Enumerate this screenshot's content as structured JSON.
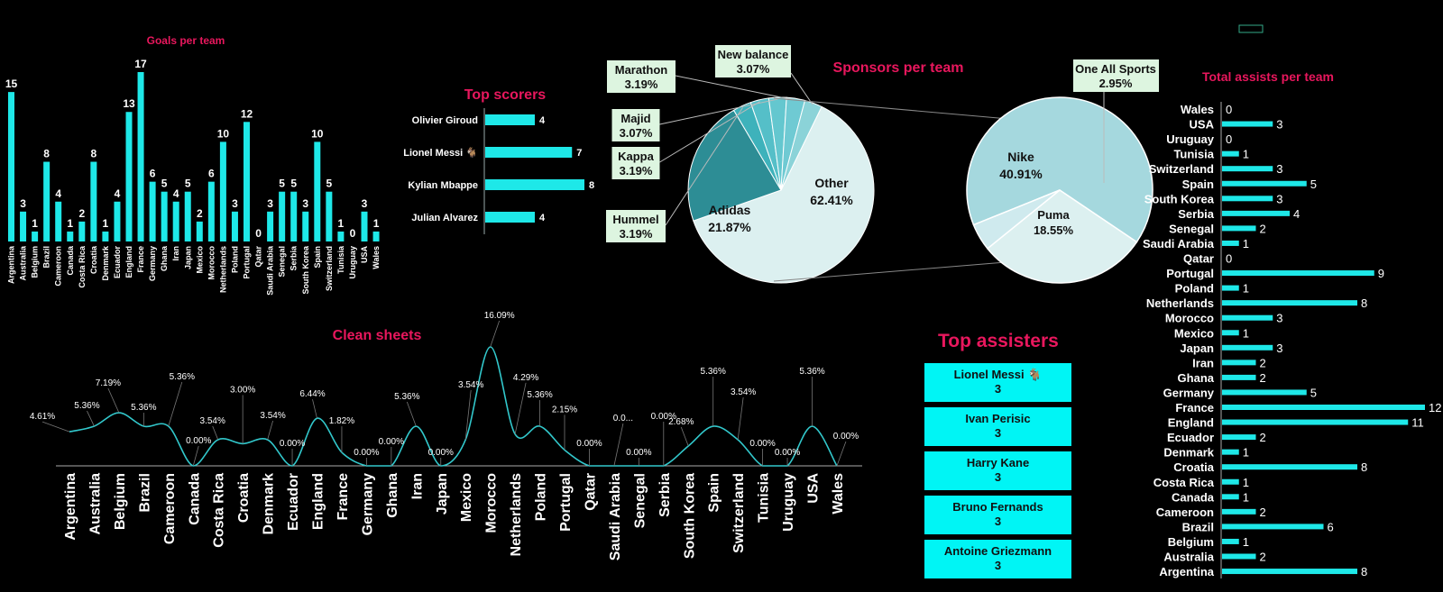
{
  "colors": {
    "accent": "#e8175d",
    "bar": "#1ee8e8",
    "bg": "#000000",
    "label": "#ffffff"
  },
  "chart_data": [
    {
      "type": "bar",
      "title": "Goals per team",
      "categories": [
        "Argentina",
        "Australia",
        "Belgium",
        "Brazil",
        "Cameroon",
        "Canada",
        "Costa Rica",
        "Croatia",
        "Denmark",
        "Ecuador",
        "England",
        "France",
        "Germany",
        "Ghana",
        "Iran",
        "Japan",
        "Mexico",
        "Morocco",
        "Netherlands",
        "Poland",
        "Portugal",
        "Qatar",
        "Saudi Arabia",
        "Senegal",
        "Serbia",
        "South Korea",
        "Spain",
        "Switzerland",
        "Tunisia",
        "Uruguay",
        "USA",
        "Wales"
      ],
      "values": [
        15,
        3,
        1,
        8,
        4,
        1,
        2,
        8,
        1,
        4,
        13,
        17,
        6,
        5,
        4,
        5,
        2,
        6,
        10,
        3,
        12,
        0,
        3,
        5,
        5,
        3,
        10,
        5,
        1,
        0,
        3,
        1
      ],
      "ylim": [
        0,
        17
      ]
    },
    {
      "type": "bar",
      "orientation": "horizontal",
      "title": "Top scorers",
      "categories": [
        "Olivier Giroud",
        "Lionel Messi 🐐",
        "Kylian Mbappe",
        "Julian Alvarez"
      ],
      "values": [
        4,
        7,
        8,
        4
      ]
    },
    {
      "type": "pie",
      "title": "Sponsors per team",
      "slices": [
        {
          "label": "Other",
          "value": 62.41,
          "text": "62.41%"
        },
        {
          "label": "Adidas",
          "value": 21.87,
          "text": "21.87%"
        },
        {
          "label": "Hummel",
          "value": 3.19,
          "text": "3.19%"
        },
        {
          "label": "Kappa",
          "value": 3.19,
          "text": "3.19%"
        },
        {
          "label": "Majid",
          "value": 3.07,
          "text": "3.07%"
        },
        {
          "label": "Marathon",
          "value": 3.19,
          "text": "3.19%"
        },
        {
          "label": "New balance",
          "value": 3.07,
          "text": "3.07%"
        }
      ],
      "breakout": [
        {
          "label": "Nike",
          "value": 40.91,
          "text": "40.91%"
        },
        {
          "label": "Puma",
          "value": 18.55,
          "text": "18.55%"
        },
        {
          "label": "One All Sports",
          "value": 2.95,
          "text": "2.95%"
        }
      ]
    },
    {
      "type": "line",
      "title": "Clean sheets",
      "categories": [
        "Argentina",
        "Australia",
        "Belgium",
        "Brazil",
        "Cameroon",
        "Canada",
        "Costa Rica",
        "Croatia",
        "Denmark",
        "Ecuador",
        "England",
        "France",
        "Germany",
        "Ghana",
        "Iran",
        "Japan",
        "Mexico",
        "Morocco",
        "Netherlands",
        "Poland",
        "Portugal",
        "Qatar",
        "Saudi Arabia",
        "Senegal",
        "Serbia",
        "South Korea",
        "Spain",
        "Switzerland",
        "Tunisia",
        "Uruguay",
        "USA",
        "Wales"
      ],
      "values": [
        4.61,
        5.36,
        7.19,
        5.36,
        5.36,
        0.0,
        3.54,
        3.0,
        3.54,
        0.0,
        6.44,
        1.82,
        0.0,
        0.0,
        5.36,
        0.0,
        3.54,
        16.09,
        4.29,
        5.36,
        2.15,
        0.0,
        0.0,
        0.0,
        0.0,
        2.68,
        5.36,
        3.54,
        0.0,
        0.0,
        5.36,
        0.0
      ],
      "labels": [
        "4.61%",
        "5.36%",
        "7.19%",
        "5.36%",
        "5.36%",
        "0.00%",
        "3.54%",
        "3.00%",
        "3.54%",
        "0.00%",
        "6.44%",
        "1.82%",
        "0.00%",
        "0.00%",
        "5.36%",
        "0.00%",
        "3.54%",
        "16.09%",
        "4.29%",
        "5.36%",
        "2.15%",
        "0.00%",
        "0.0...",
        "0.00%",
        "0.00%",
        "2.68%",
        "5.36%",
        "3.54%",
        "0.00%",
        "0.00%",
        "5.36%",
        "0.00%"
      ]
    },
    {
      "type": "bar",
      "orientation": "horizontal",
      "title": "Total assists per team",
      "categories": [
        "Wales",
        "USA",
        "Uruguay",
        "Tunisia",
        "Switzerland",
        "Spain",
        "South Korea",
        "Serbia",
        "Senegal",
        "Saudi Arabia",
        "Qatar",
        "Portugal",
        "Poland",
        "Netherlands",
        "Morocco",
        "Mexico",
        "Japan",
        "Iran",
        "Ghana",
        "Germany",
        "France",
        "England",
        "Ecuador",
        "Denmark",
        "Croatia",
        "Costa Rica",
        "Canada",
        "Cameroon",
        "Brazil",
        "Belgium",
        "Australia",
        "Argentina"
      ],
      "values": [
        0,
        3,
        0,
        1,
        3,
        5,
        3,
        4,
        2,
        1,
        0,
        9,
        1,
        8,
        3,
        1,
        3,
        2,
        2,
        5,
        12,
        11,
        2,
        1,
        8,
        1,
        1,
        2,
        6,
        1,
        2,
        8
      ]
    }
  ],
  "assisters": {
    "title": "Top assisters",
    "items": [
      {
        "name": "Lionel Messi 🐐",
        "value": "3"
      },
      {
        "name": "Ivan Perisic",
        "value": "3"
      },
      {
        "name": "Harry Kane",
        "value": "3"
      },
      {
        "name": "Bruno Fernands",
        "value": "3"
      },
      {
        "name": "Antoine Griezmann",
        "value": "3"
      }
    ]
  }
}
